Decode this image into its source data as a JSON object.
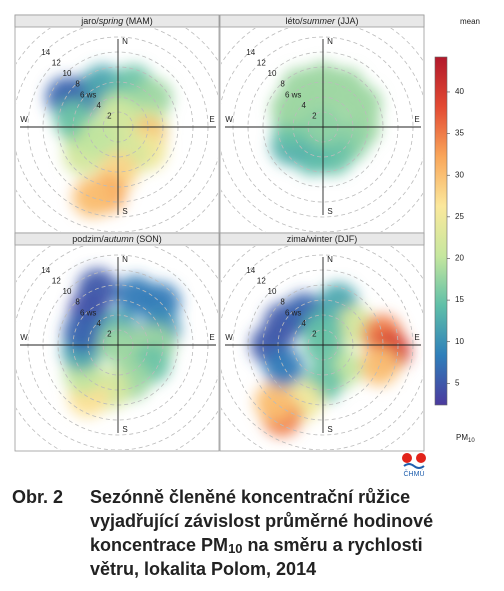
{
  "polar_axis": {
    "rlim": [
      0,
      16
    ],
    "rticks": [
      2,
      4,
      {
        "value": 6,
        "label": "6 ws"
      },
      8,
      10,
      12,
      14
    ],
    "compass": [
      "N",
      "E",
      "S",
      "W"
    ]
  },
  "chart_data": [
    {
      "type": "polar",
      "title_parts": [
        {
          "text": "jaro/"
        },
        {
          "text": "spring",
          "italic": true
        },
        {
          "text": " (MAM)"
        }
      ],
      "dir": [
        315,
        300,
        340,
        20,
        50,
        90,
        110,
        130,
        160,
        180,
        190,
        200,
        230,
        260,
        280,
        0,
        0,
        240
      ],
      "ws": [
        6,
        8,
        6,
        6,
        6,
        4,
        4,
        5,
        4,
        6,
        9,
        10,
        6,
        5,
        6,
        2,
        0,
        3
      ],
      "values": [
        5,
        6,
        12,
        15,
        18,
        22,
        30,
        25,
        22,
        28,
        32,
        30,
        22,
        20,
        15,
        20,
        22,
        20
      ]
    },
    {
      "type": "polar",
      "title_parts": [
        {
          "text": "léto/"
        },
        {
          "text": "summer",
          "italic": true
        },
        {
          "text": " (JJA)"
        }
      ],
      "dir": [
        330,
        0,
        30,
        60,
        90,
        120,
        160,
        200,
        240,
        270,
        300,
        0,
        0
      ],
      "ws": [
        6,
        6,
        6,
        6,
        5,
        4,
        4,
        4,
        5,
        4,
        5,
        2,
        0
      ],
      "values": [
        18,
        18,
        18,
        18,
        18,
        17,
        15,
        14,
        13,
        15,
        18,
        18,
        17
      ]
    },
    {
      "type": "polar",
      "title_parts": [
        {
          "text": "podzim/"
        },
        {
          "text": "autumn",
          "italic": true
        },
        {
          "text": " (SON)"
        }
      ],
      "dir": [
        320,
        340,
        20,
        45,
        70,
        100,
        90,
        120,
        160,
        190,
        210,
        230,
        260,
        290,
        0,
        0
      ],
      "ws": [
        6,
        8,
        7,
        8,
        6,
        2,
        5,
        5,
        5,
        6,
        8,
        6,
        5,
        5,
        2,
        0
      ],
      "values": [
        4,
        5,
        8,
        8,
        10,
        25,
        18,
        15,
        18,
        22,
        27,
        20,
        12,
        6,
        12,
        18
      ]
    },
    {
      "type": "polar",
      "title_parts": [
        {
          "text": "zima/winter (DJF)"
        }
      ],
      "dir": [
        300,
        270,
        330,
        20,
        60,
        80,
        95,
        110,
        140,
        180,
        200,
        210,
        220,
        240,
        0,
        0
      ],
      "ws": [
        6,
        7,
        5,
        6,
        5,
        8,
        9,
        8,
        4,
        5,
        8,
        11,
        10,
        6,
        2,
        0
      ],
      "values": [
        5,
        5,
        6,
        12,
        22,
        35,
        40,
        30,
        20,
        15,
        25,
        35,
        30,
        8,
        14,
        15
      ]
    }
  ],
  "colorbar": {
    "label": "mean",
    "unit": "PM",
    "unit_sub": "10",
    "lim": [
      2.4,
      44.2
    ],
    "ticks": [
      5,
      10,
      15,
      20,
      25,
      30,
      35,
      40
    ],
    "colors": [
      "#4b3a9e",
      "#2f7fba",
      "#5fbfa8",
      "#c6e79e",
      "#fbe89c",
      "#f9a65a",
      "#e34a33",
      "#b2182b"
    ]
  },
  "logo": "ČHMÚ",
  "caption": {
    "label": "Obr. 2",
    "lines": [
      [
        {
          "text": "Sezónně členěné koncentrační růžice"
        }
      ],
      [
        {
          "text": "vyjadřující závislost průměrné hodinové"
        }
      ],
      [
        {
          "text": "koncentrace PM"
        },
        {
          "text": "10",
          "sub": true
        },
        {
          "text": " na směru a rychlosti"
        }
      ],
      [
        {
          "text": "větru, lokalita Polom, 2014"
        }
      ]
    ]
  }
}
